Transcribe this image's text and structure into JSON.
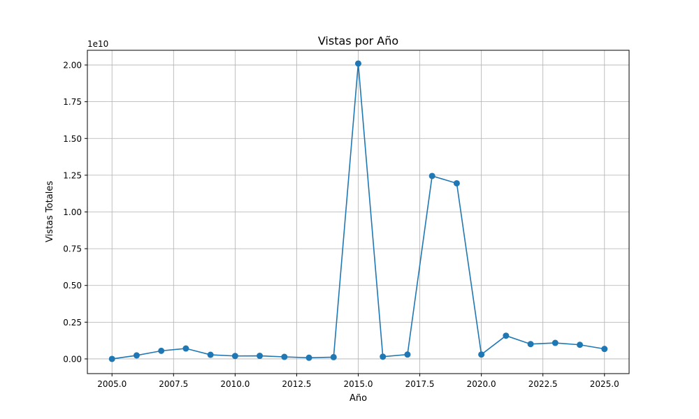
{
  "chart_data": {
    "type": "line",
    "title": "Vistas por Año",
    "xlabel": "Año",
    "ylabel": "Vistas Totales",
    "y_scale_label": "1e10",
    "y_multiplier": 10000000000,
    "xlim": [
      2004.0,
      2026.0
    ],
    "ylim": [
      -0.1,
      2.1
    ],
    "x_ticks": [
      2005.0,
      2007.5,
      2010.0,
      2012.5,
      2015.0,
      2017.5,
      2020.0,
      2022.5,
      2025.0
    ],
    "x_tick_labels": [
      "2005.0",
      "2007.5",
      "2010.0",
      "2012.5",
      "2015.0",
      "2017.5",
      "2020.0",
      "2022.5",
      "2025.0"
    ],
    "y_ticks": [
      0.0,
      0.25,
      0.5,
      0.75,
      1.0,
      1.25,
      1.5,
      1.75,
      2.0
    ],
    "y_tick_labels": [
      "0.00",
      "0.25",
      "0.50",
      "0.75",
      "1.00",
      "1.25",
      "1.50",
      "1.75",
      "2.00"
    ],
    "grid": true,
    "color": "#1f77b4",
    "marker": "circle",
    "series": [
      {
        "x": [
          2005,
          2006,
          2007,
          2008,
          2009,
          2010,
          2011,
          2012,
          2013,
          2014,
          2015,
          2016,
          2017,
          2018,
          2019,
          2020,
          2021,
          2022,
          2023,
          2024,
          2025
        ],
        "y": [
          0.0,
          0.024,
          0.055,
          0.071,
          0.028,
          0.02,
          0.021,
          0.014,
          0.008,
          0.012,
          2.01,
          0.015,
          0.03,
          1.245,
          1.195,
          0.03,
          0.158,
          0.101,
          0.109,
          0.096,
          0.068
        ]
      }
    ]
  }
}
